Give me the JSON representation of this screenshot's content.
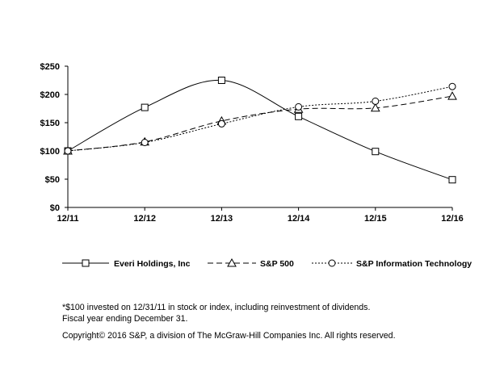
{
  "chart_data": {
    "type": "line",
    "title": "",
    "xlabel": "",
    "ylabel": "",
    "categories": [
      "12/11",
      "12/12",
      "12/13",
      "12/14",
      "12/15",
      "12/16"
    ],
    "y_ticks": [
      "$0",
      "$50",
      "$100",
      "$150",
      "$200",
      "$250"
    ],
    "ylim": [
      0,
      250
    ],
    "grid": false,
    "legend_position": "bottom",
    "series": [
      {
        "name": "Everi Holdings, Inc",
        "values": [
          100,
          177,
          225,
          161,
          99,
          49
        ],
        "marker": "square",
        "line": "solid"
      },
      {
        "name": "S&P 500",
        "values": [
          100,
          116,
          153,
          174,
          176,
          197
        ],
        "marker": "triangle",
        "line": "dashed"
      },
      {
        "name": "S&P Information Technology",
        "values": [
          100,
          115,
          148,
          178,
          188,
          214
        ],
        "marker": "circle",
        "line": "dotted"
      }
    ]
  },
  "notes": {
    "line1": "*$100 invested on 12/31/11 in stock or index, including reinvestment of dividends.",
    "line2": "Fiscal year ending December 31.",
    "copyright": "Copyright© 2016 S&P, a division of The McGraw-Hill Companies Inc. All rights reserved."
  }
}
